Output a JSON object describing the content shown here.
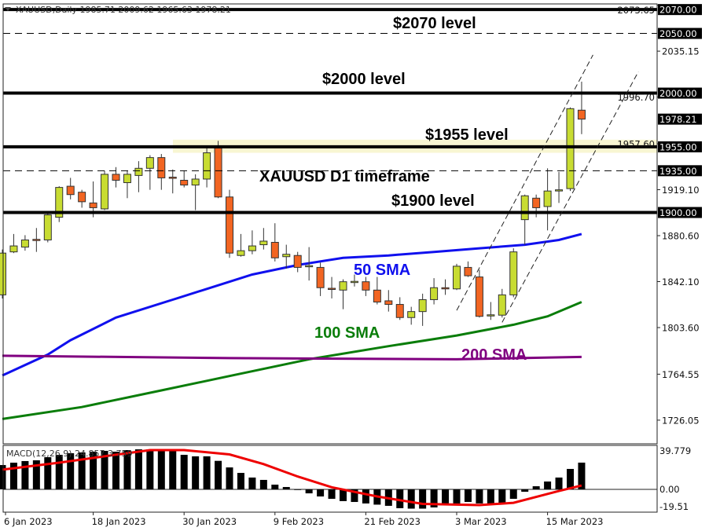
{
  "header": {
    "text": "XAUUSD,Daily  1985.71 2009.62 1965.63 1978.21"
  },
  "macd_header": {
    "text": "MACD(12,26,9) 24.857 3.759"
  },
  "colors": {
    "bull": "#c8dc32",
    "bear": "#f26522",
    "sma50": "#1010ee",
    "sma100": "#0a7d0a",
    "sma200": "#800080",
    "macd_signal": "#ee0000",
    "zone_1955": "#f8f6d2"
  },
  "chart_data": [
    {
      "type": "candlestick",
      "title": "XAUUSD D1 timeframe",
      "ylim": [
        1700,
        2078
      ],
      "grid": false,
      "candles": [
        [
          "6 Jan 2023",
          1831,
          1869,
          1828,
          1866
        ],
        [
          "9 Jan 2023",
          1867,
          1882,
          1866,
          1872
        ],
        [
          "10 Jan 2023",
          1871,
          1881,
          1868,
          1877
        ],
        [
          "11 Jan 2023",
          1877.5,
          1887,
          1867,
          1876.5
        ],
        [
          "12 Jan 2023",
          1877,
          1899,
          1875,
          1898
        ],
        [
          "13 Jan 2023",
          1896,
          1922,
          1892,
          1921
        ],
        [
          "16 Jan 2023",
          1922,
          1929,
          1911,
          1915
        ],
        [
          "17 Jan 2023",
          1917,
          1919,
          1904,
          1909
        ],
        [
          "18 Jan 2023",
          1908,
          1926,
          1896,
          1904
        ],
        [
          "19 Jan 2023",
          1903,
          1935,
          1902,
          1932
        ],
        [
          "20 Jan 2023",
          1932,
          1938,
          1921,
          1927
        ],
        [
          "23 Jan 2023",
          1925,
          1935,
          1912,
          1932
        ],
        [
          "24 Jan 2023",
          1931,
          1943,
          1917,
          1937
        ],
        [
          "25 Jan 2023",
          1937,
          1948,
          1919,
          1946
        ],
        [
          "26 Jan 2023",
          1946,
          1949,
          1919,
          1929
        ],
        [
          "27 Jan 2023",
          1929.6,
          1936,
          1916,
          1929
        ],
        [
          "30 Jan 2023",
          1927,
          1935,
          1921,
          1923
        ],
        [
          "31 Jan 2023",
          1923,
          1932,
          1902,
          1928
        ],
        [
          "1 Feb 2023",
          1928,
          1954,
          1921,
          1950
        ],
        [
          "2 Feb 2023",
          1954,
          1960,
          1912,
          1913
        ],
        [
          "3 Feb 2023",
          1913,
          1919,
          1862,
          1866
        ],
        [
          "6 Feb 2023",
          1864,
          1882,
          1863,
          1868
        ],
        [
          "7 Feb 2023",
          1868,
          1885,
          1865,
          1872
        ],
        [
          "8 Feb 2023",
          1873,
          1887,
          1869,
          1876
        ],
        [
          "9 Feb 2023",
          1875,
          1891,
          1859,
          1862
        ],
        [
          "10 Feb 2023",
          1863,
          1873,
          1853,
          1865
        ],
        [
          "13 Feb 2023",
          1864,
          1867,
          1850,
          1854
        ],
        [
          "14 Feb 2023",
          1855,
          1871,
          1843,
          1855.5
        ],
        [
          "15 Feb 2023",
          1854,
          1858,
          1830,
          1837
        ],
        [
          "16 Feb 2023",
          1836.5,
          1846,
          1828,
          1836
        ],
        [
          "17 Feb 2023",
          1835,
          1844,
          1819,
          1842
        ],
        [
          "20 Feb 2023",
          1842,
          1848,
          1838,
          1842.3
        ],
        [
          "21 Feb 2023",
          1842,
          1846,
          1830,
          1835
        ],
        [
          "22 Feb 2023",
          1835,
          1846,
          1823,
          1825
        ],
        [
          "23 Feb 2023",
          1826,
          1835,
          1817,
          1823
        ],
        [
          "24 Feb 2023",
          1823,
          1829,
          1810,
          1812
        ],
        [
          "27 Feb 2023",
          1812,
          1821,
          1806,
          1817
        ],
        [
          "28 Feb 2023",
          1817,
          1832,
          1805,
          1827
        ],
        [
          "1 Mar 2023",
          1827,
          1845,
          1823,
          1837
        ],
        [
          "2 Mar 2023",
          1837,
          1844,
          1831,
          1836
        ],
        [
          "3 Mar 2023",
          1836,
          1857,
          1835,
          1855
        ],
        [
          "6 Mar 2023",
          1854,
          1859,
          1846,
          1847
        ],
        [
          "7 Mar 2023",
          1846,
          1852,
          1812,
          1813
        ],
        [
          "8 Mar 2023",
          1814,
          1825,
          1810,
          1814.3
        ],
        [
          "9 Mar 2023",
          1814,
          1836,
          1812,
          1831
        ],
        [
          "10 Mar 2023",
          1831,
          1870,
          1829,
          1867
        ],
        [
          "13 Mar 2023",
          1894,
          1915,
          1873,
          1914
        ],
        [
          "14 Mar 2023",
          1912,
          1915,
          1896,
          1904
        ],
        [
          "15 Mar 2023",
          1905,
          1937,
          1885,
          1918
        ],
        [
          "16 Mar 2023",
          1918.8,
          1934,
          1908,
          1919
        ],
        [
          "17 Mar 2023",
          1920,
          1988,
          1918,
          1987
        ],
        [
          "20 Mar 2023",
          1985.71,
          2009.62,
          1965.63,
          1978.21
        ]
      ],
      "moving_averages": [
        {
          "name": "50 SMA",
          "color_key": "sma50",
          "points": [
            [
              0,
              1763.5
            ],
            [
              4,
              1781
            ],
            [
              6,
              1793
            ],
            [
              10,
              1812
            ],
            [
              15,
              1827
            ],
            [
              18,
              1836
            ],
            [
              22,
              1848
            ],
            [
              26,
              1856
            ],
            [
              30,
              1862
            ],
            [
              34,
              1864
            ],
            [
              38,
              1867
            ],
            [
              42,
              1870
            ],
            [
              46,
              1873
            ],
            [
              49,
              1877
            ],
            [
              51,
              1882
            ]
          ]
        },
        {
          "name": "100 SMA",
          "color_key": "sma100",
          "points": [
            [
              0,
              1727
            ],
            [
              7,
              1737
            ],
            [
              14,
              1751
            ],
            [
              20,
              1763
            ],
            [
              27,
              1777
            ],
            [
              34,
              1788
            ],
            [
              40,
              1797
            ],
            [
              45,
              1806
            ],
            [
              48,
              1813
            ],
            [
              51,
              1825
            ]
          ]
        },
        {
          "name": "200 SMA",
          "color_key": "sma200",
          "points": [
            [
              0,
              1780
            ],
            [
              20,
              1778
            ],
            [
              40,
              1777
            ],
            [
              51,
              1779
            ]
          ]
        }
      ],
      "levels": [
        {
          "price": 2070,
          "style": "solid",
          "label": "2070.00",
          "annotation": "$2070 level"
        },
        {
          "price": 2050,
          "style": "dashed",
          "label": "2050.00"
        },
        {
          "price": 2000,
          "style": "solid",
          "label": "2000.00",
          "annotation": "$2000 level"
        },
        {
          "price": 1955,
          "style": "solid",
          "label": "1955.00",
          "annotation": "$1955 level",
          "zone": [
            1950,
            1961
          ]
        },
        {
          "price": 1935,
          "style": "dashed",
          "label": "1935.00"
        },
        {
          "price": 1900,
          "style": "solid",
          "label": "1900.00",
          "annotation": "$1900 level"
        }
      ],
      "channel": [
        {
          "from": [
            40,
            1818
          ],
          "to": [
            52,
            2032
          ]
        },
        {
          "from": [
            44,
            1808
          ],
          "to": [
            56,
            2018
          ]
        }
      ],
      "y_tick_labels": [
        "2073.65",
        "2035.15",
        "1996.70",
        "1957.60",
        "1919.10",
        "1880.60",
        "1842.10",
        "1803.60",
        "1764.55",
        "1726.05"
      ],
      "current_price_label": "1978.21",
      "x_ticks": [
        "6 Jan 2023",
        "18 Jan 2023",
        "30 Jan 2023",
        "9 Feb 2023",
        "21 Feb 2023",
        "3 Mar 2023",
        "15 Mar 2023"
      ]
    },
    {
      "type": "bar",
      "title": "MACD(12,26,9)",
      "ylim": [
        -19.51,
        39.779
      ],
      "y_tick_labels": [
        "39.779",
        "0.00",
        "-19.51"
      ],
      "histogram": [
        22.6,
        24.8,
        26.3,
        27.0,
        29.9,
        32.1,
        33.6,
        34.3,
        35.0,
        35.8,
        35.0,
        36.5,
        37.2,
        37.2,
        35.8,
        35.8,
        32.1,
        30.7,
        30.7,
        26.5,
        20.4,
        15.3,
        11.0,
        8.8,
        4.4,
        2.2,
        -0.3,
        -3.7,
        -6.6,
        -8.8,
        -10.9,
        -11.7,
        -13.1,
        -14.2,
        -15.3,
        -17.5,
        -17.9,
        -17.9,
        -16.8,
        -13.1,
        -13.1,
        -11.7,
        -13.1,
        -13.1,
        -13.1,
        -8.8,
        -2.2,
        2.9,
        7.3,
        11.0,
        19.0,
        24.857
      ],
      "signal": [
        [
          0,
          18.3
        ],
        [
          5,
          24.8
        ],
        [
          9,
          30.7
        ],
        [
          13,
          36.5
        ],
        [
          16,
          36.5
        ],
        [
          20,
          32.5
        ],
        [
          23,
          23.5
        ],
        [
          26,
          12
        ],
        [
          29,
          2
        ],
        [
          33,
          -6.6
        ],
        [
          37,
          -13.5
        ],
        [
          42,
          -14.6
        ],
        [
          45,
          -12.5
        ],
        [
          49,
          -1.5
        ],
        [
          51,
          3.6
        ]
      ]
    }
  ]
}
